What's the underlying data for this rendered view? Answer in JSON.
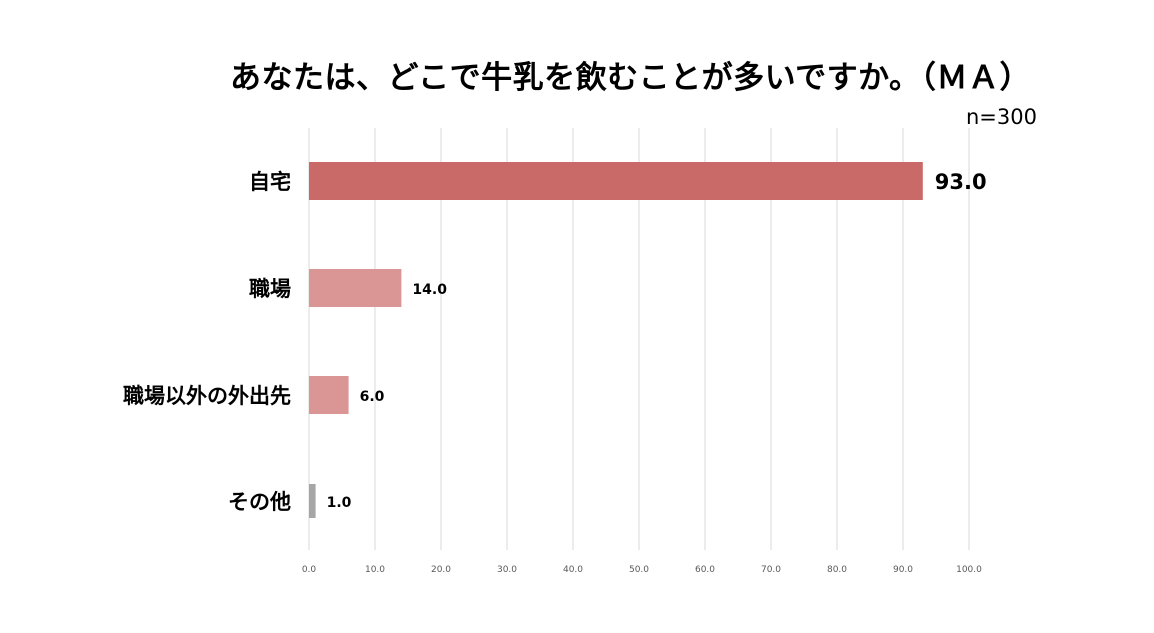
{
  "chart_data": {
    "type": "bar",
    "orientation": "horizontal",
    "title": "あなたは、どこで牛乳を飲むことが多いですか。（ＭＡ）",
    "sample_size": "n=300",
    "categories": [
      "自宅",
      "職場",
      "職場以外の外出先",
      "その他"
    ],
    "values": [
      93.0,
      14.0,
      6.0,
      1.0
    ],
    "value_labels": [
      "93.0",
      "14.0",
      "6.0",
      "1.0"
    ],
    "bar_colors": [
      "#c96a69",
      "#d99694",
      "#d99694",
      "#a6a6a6"
    ],
    "xlim": [
      0,
      100
    ],
    "xticks": [
      "0.0",
      "10.0",
      "20.0",
      "30.0",
      "40.0",
      "50.0",
      "60.0",
      "70.0",
      "80.0",
      "90.0",
      "100.0"
    ],
    "grid": true,
    "legend": "none"
  }
}
